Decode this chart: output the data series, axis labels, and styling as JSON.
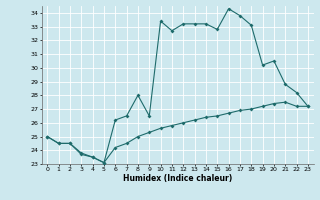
{
  "title": "",
  "xlabel": "Humidex (Indice chaleur)",
  "xlim": [
    -0.5,
    23.5
  ],
  "ylim": [
    23,
    34.5
  ],
  "yticks": [
    23,
    24,
    25,
    26,
    27,
    28,
    29,
    30,
    31,
    32,
    33,
    34
  ],
  "xticks": [
    0,
    1,
    2,
    3,
    4,
    5,
    6,
    7,
    8,
    9,
    10,
    11,
    12,
    13,
    14,
    15,
    16,
    17,
    18,
    19,
    20,
    21,
    22,
    23
  ],
  "bg_color": "#cde8ee",
  "line_color": "#1e6b6b",
  "grid_color": "#ffffff",
  "line1_x": [
    0,
    1,
    2,
    3,
    4,
    5,
    6,
    7,
    8,
    9,
    10,
    11,
    12,
    13,
    14,
    15,
    16,
    17,
    18,
    19,
    20,
    21,
    22,
    23
  ],
  "line1_y": [
    25.0,
    24.5,
    24.5,
    23.7,
    23.5,
    23.1,
    26.2,
    26.5,
    28.0,
    26.5,
    33.4,
    32.7,
    33.2,
    33.2,
    33.2,
    32.8,
    34.3,
    33.8,
    33.1,
    30.2,
    30.5,
    28.8,
    28.2,
    27.2
  ],
  "line2_x": [
    0,
    1,
    2,
    3,
    4,
    5,
    6,
    7,
    8,
    9,
    10,
    11,
    12,
    13,
    14,
    15,
    16,
    17,
    18,
    19,
    20,
    21,
    22,
    23
  ],
  "line2_y": [
    25.0,
    24.5,
    24.5,
    23.8,
    23.5,
    23.1,
    24.2,
    24.5,
    25.0,
    25.3,
    25.6,
    25.8,
    26.0,
    26.2,
    26.4,
    26.5,
    26.7,
    26.9,
    27.0,
    27.2,
    27.4,
    27.5,
    27.2,
    27.2
  ]
}
